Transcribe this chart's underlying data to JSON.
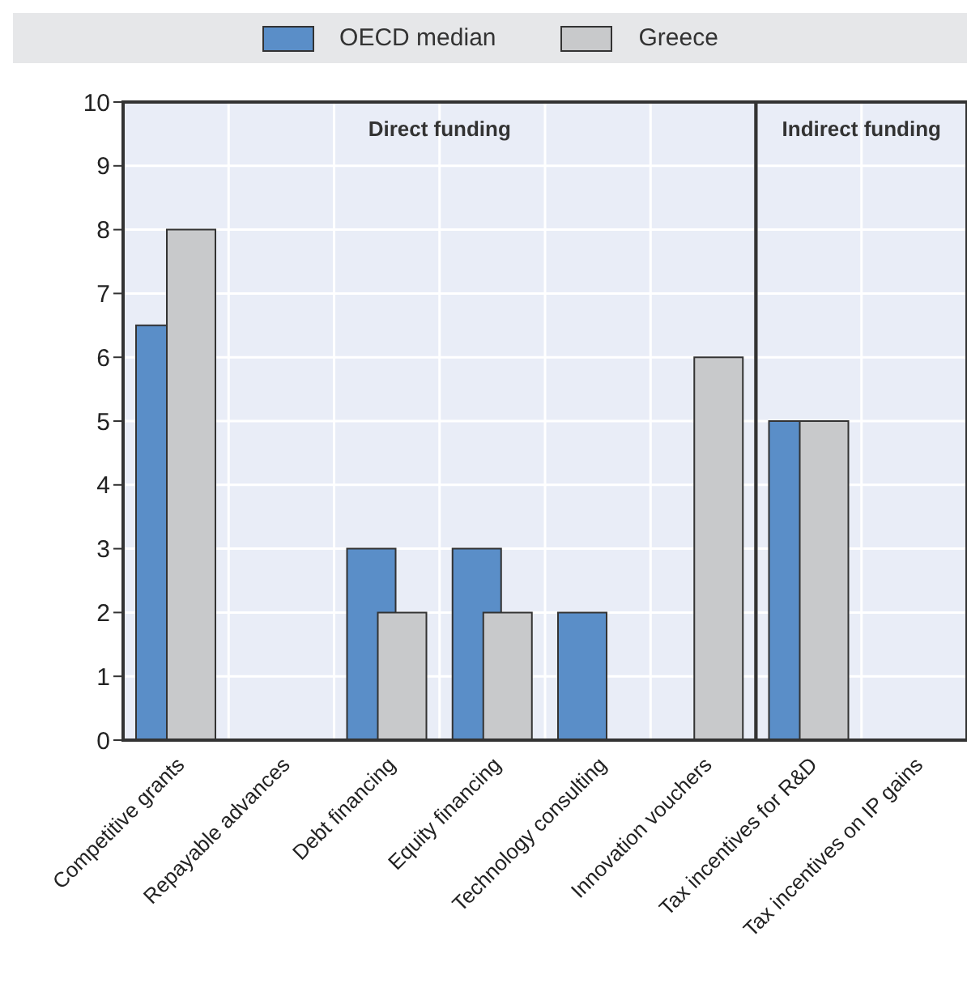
{
  "chart_data": {
    "type": "bar",
    "categories": [
      "Competitive grants",
      "Repayable advances",
      "Debt financing",
      "Equity financing",
      "Technology consulting",
      "Innovation vouchers",
      "Tax incentives for R&D",
      "Tax incentives on IP gains"
    ],
    "series": [
      {
        "name": "OECD median",
        "color": "#5a8ec8",
        "values": [
          6.5,
          0,
          3,
          3,
          2,
          0,
          5,
          0
        ]
      },
      {
        "name": "Greece",
        "color": "#c8c9cb",
        "values": [
          8,
          0,
          2,
          2,
          0,
          6,
          5,
          0
        ]
      }
    ],
    "ylim": [
      0,
      10
    ],
    "yticks": [
      0,
      1,
      2,
      3,
      4,
      5,
      6,
      7,
      8,
      9,
      10
    ],
    "grid": true,
    "legend": "top",
    "bands": [
      {
        "axis": "x",
        "from": "Competitive grants",
        "to": "Innovation vouchers",
        "label": "Direct funding",
        "color": "#e9edf7"
      },
      {
        "axis": "x",
        "from": "Tax incentives for R&D",
        "to": "Tax incentives on IP gains",
        "label": "Indirect funding",
        "color": "#e9edf7"
      }
    ]
  }
}
